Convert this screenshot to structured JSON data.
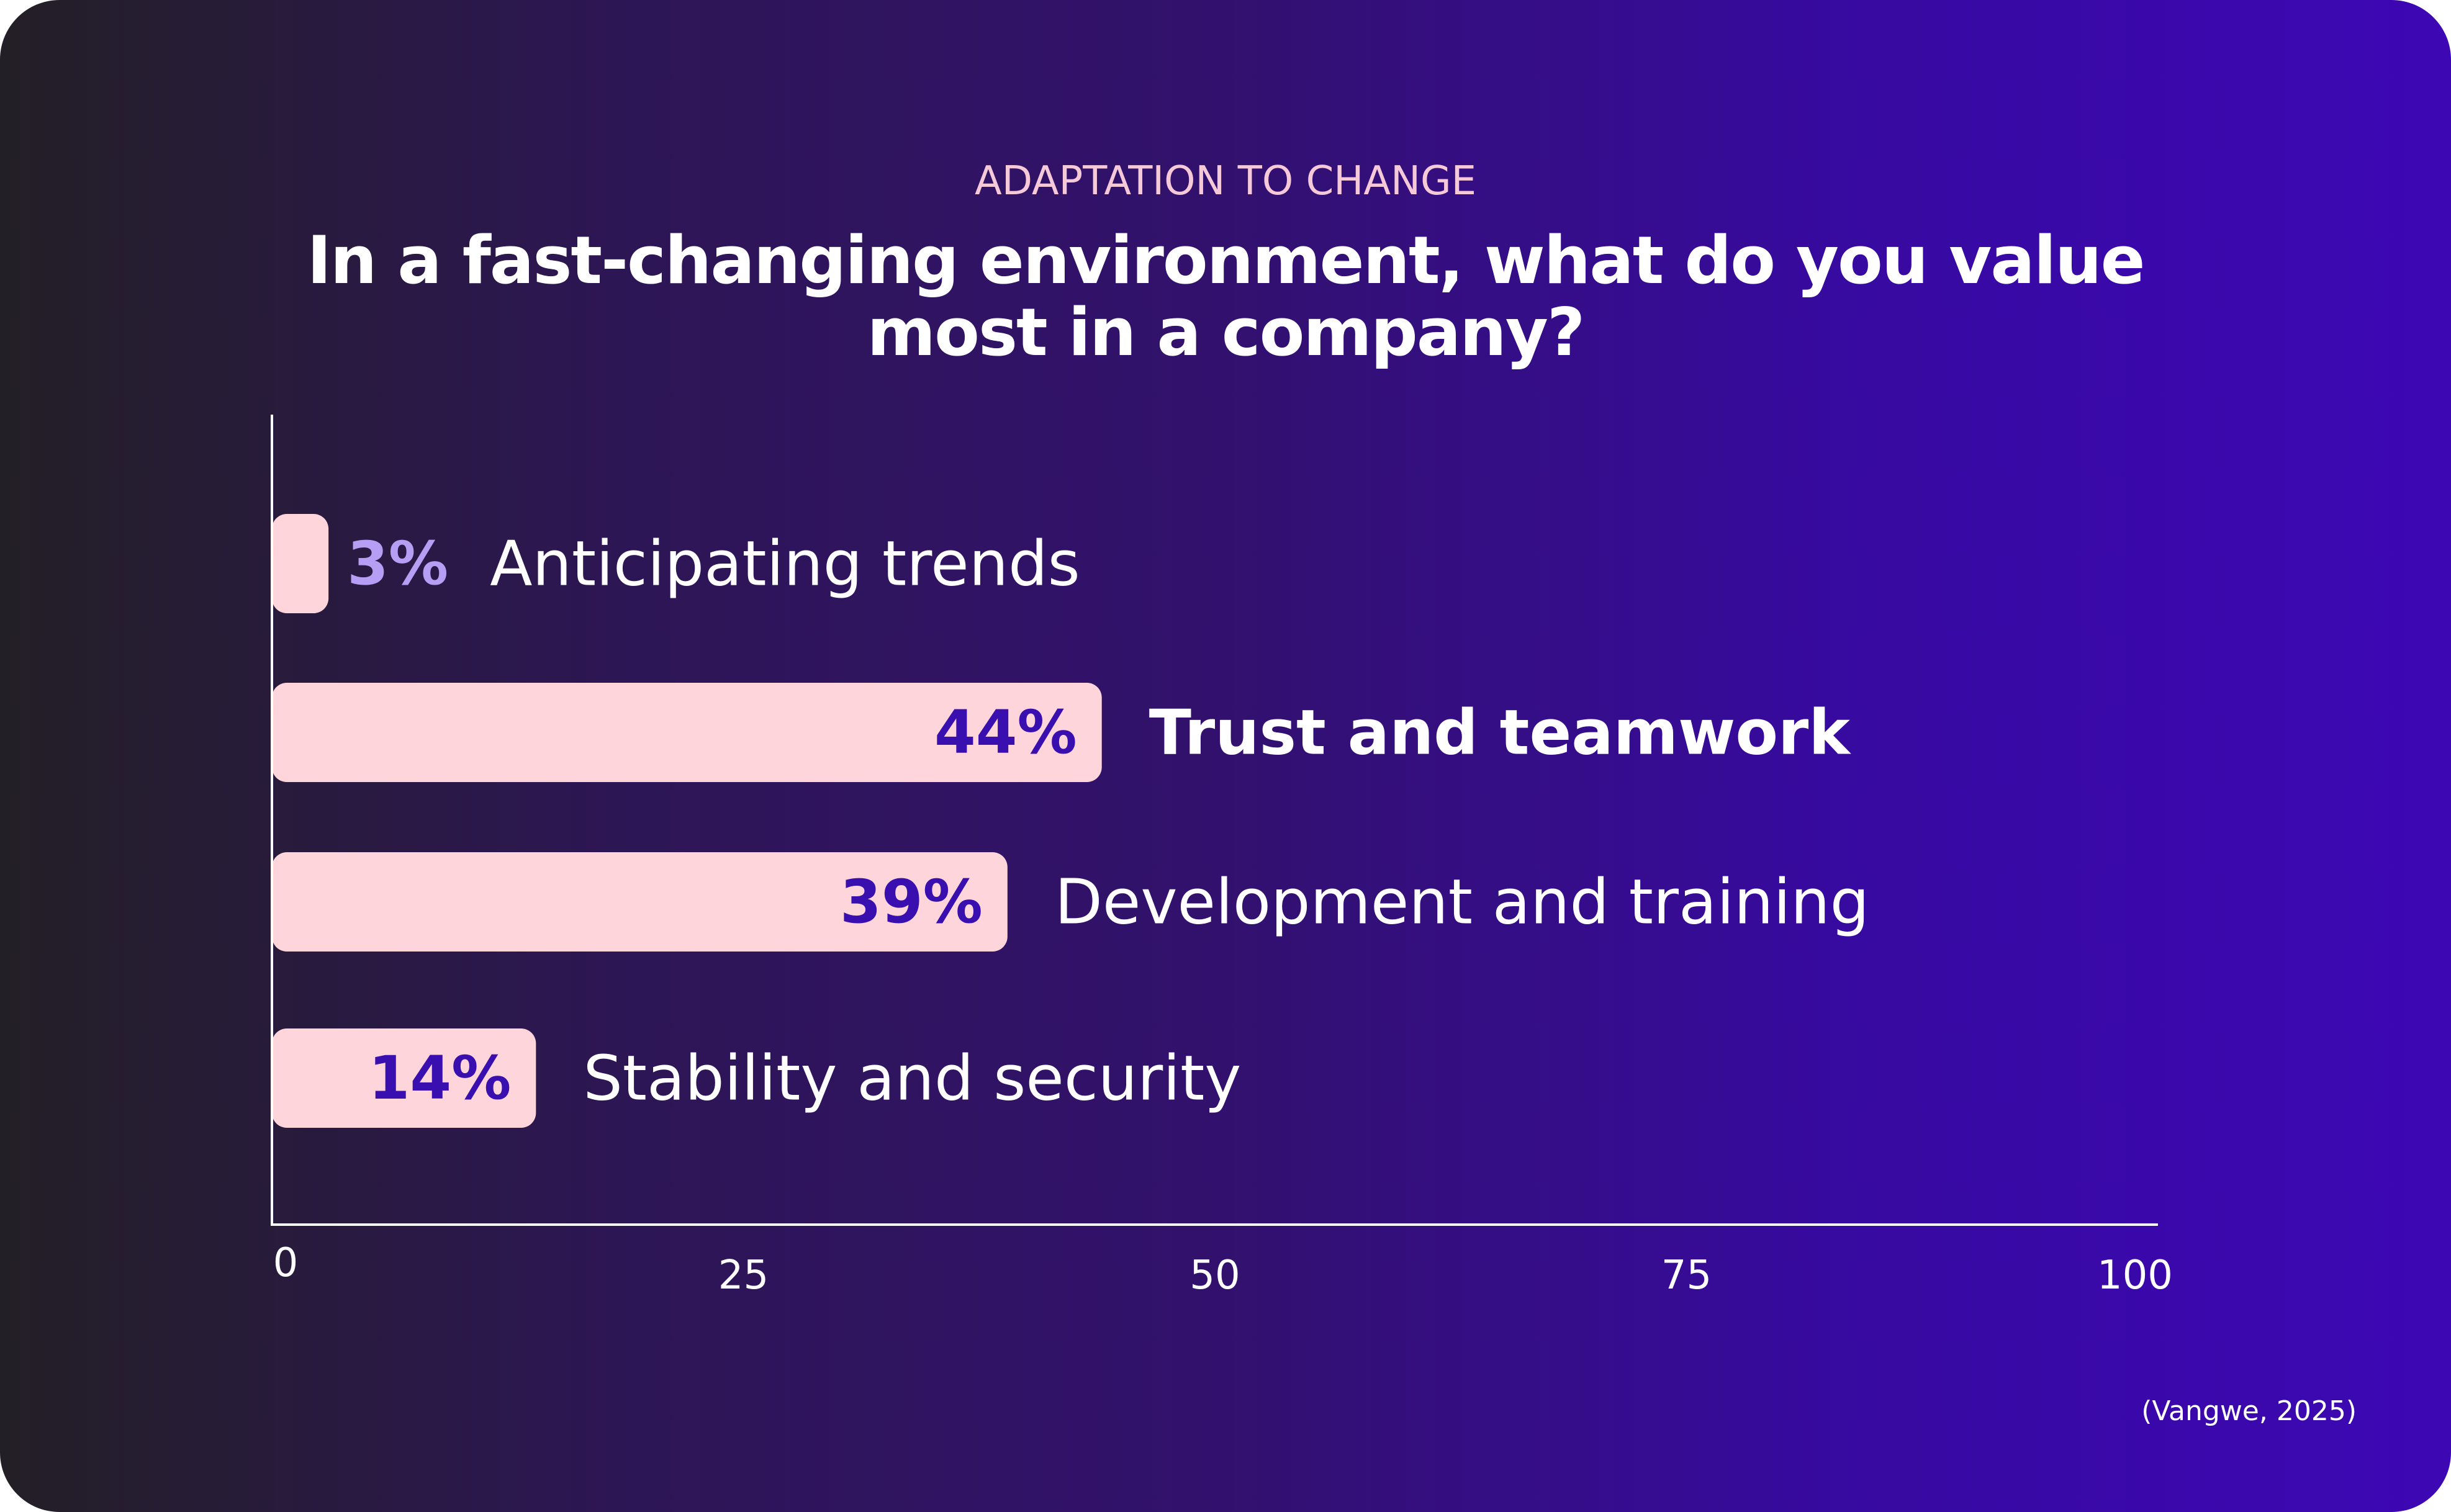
{
  "header": {
    "subtitle": "ADAPTATION TO CHANGE",
    "title": "In a fast-changing environment, what do you value most in a company?"
  },
  "source_note": "(Vangwe, 2025)",
  "colors": {
    "bar": "#fdd5da",
    "value_label_inside": "#3a0fb0",
    "value_label_outside": "#b79ef5",
    "axis": "#ffffff",
    "text": "#ffffff"
  },
  "chart_data": {
    "type": "bar",
    "orientation": "horizontal",
    "title": "In a fast-changing environment, what do you value most in a company?",
    "subtitle": "ADAPTATION TO CHANGE",
    "categories": [
      "Anticipating trends",
      "Trust and teamwork",
      "Development and training",
      "Stability and security"
    ],
    "values": [
      3,
      44,
      39,
      14
    ],
    "value_labels": [
      "3%",
      "44%",
      "39%",
      "14%"
    ],
    "highlighted_category": "Trust and teamwork",
    "xlim": [
      0,
      100
    ],
    "xticks": [
      "0",
      "25",
      "50",
      "75",
      "100"
    ],
    "xlabel": "",
    "ylabel": "",
    "grid": false,
    "legend": "none"
  }
}
